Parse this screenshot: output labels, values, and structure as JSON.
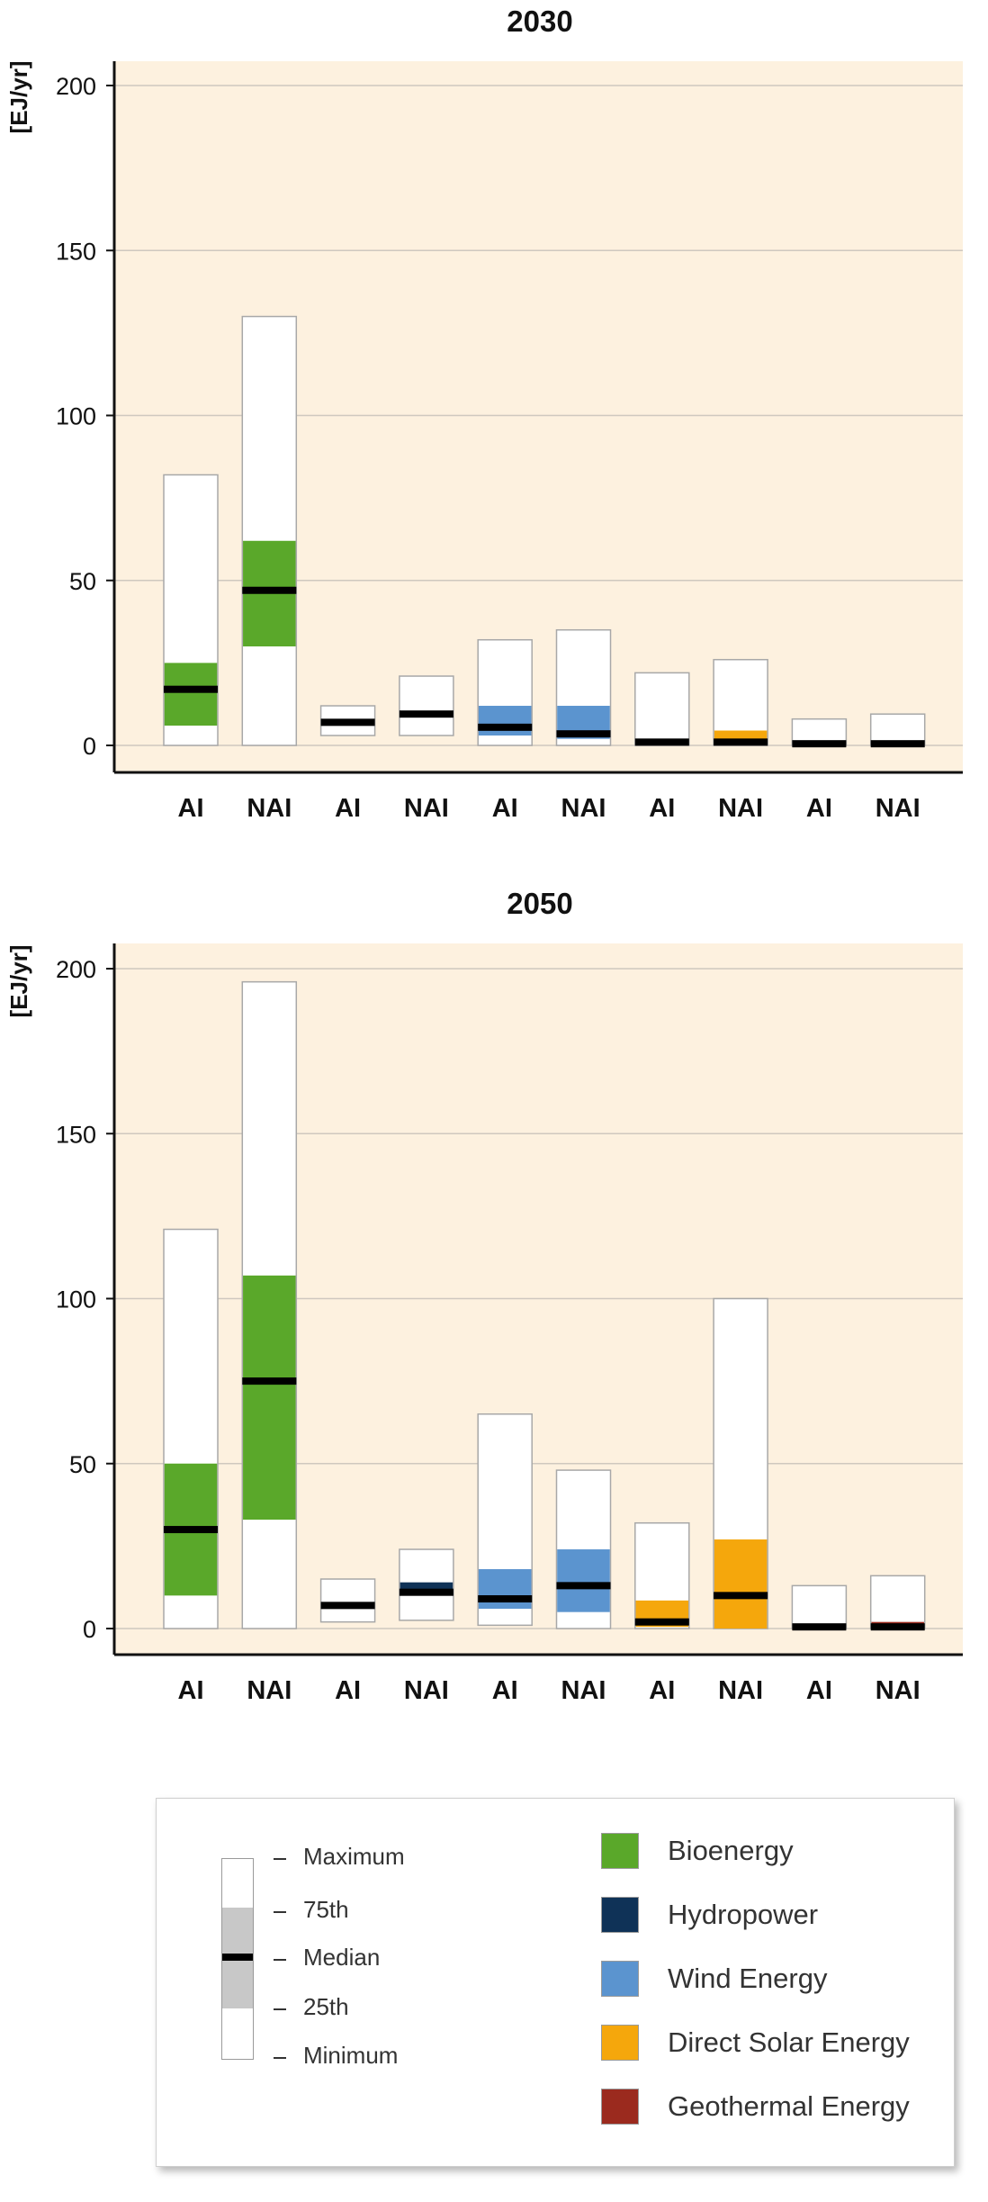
{
  "chart_data": [
    {
      "type": "box",
      "title": "2030",
      "ylabel": "[EJ/yr]",
      "ylim": [
        0,
        200
      ],
      "yticks": [
        0,
        50,
        100,
        150,
        200
      ],
      "categories": [
        "AI",
        "NAI",
        "AI",
        "NAI",
        "AI",
        "NAI",
        "AI",
        "NAI",
        "AI",
        "NAI"
      ],
      "boxes": [
        {
          "category": "AI",
          "technology": "Bioenergy",
          "min": 0,
          "q1": 6,
          "median": 17,
          "q3": 25,
          "max": 82
        },
        {
          "category": "NAI",
          "technology": "Bioenergy",
          "min": 0,
          "q1": 30,
          "median": 47,
          "q3": 62,
          "max": 130
        },
        {
          "category": "AI",
          "technology": "Hydropower",
          "min": 3,
          "q1": 6,
          "median": 7,
          "q3": 7.5,
          "max": 12
        },
        {
          "category": "NAI",
          "technology": "Hydropower",
          "min": 3,
          "q1": 8.5,
          "median": 9.5,
          "q3": 10,
          "max": 21
        },
        {
          "category": "AI",
          "technology": "Wind Energy",
          "min": 0,
          "q1": 3,
          "median": 5.5,
          "q3": 12,
          "max": 32
        },
        {
          "category": "NAI",
          "technology": "Wind Energy",
          "min": 0,
          "q1": 2,
          "median": 3.5,
          "q3": 12,
          "max": 35
        },
        {
          "category": "AI",
          "technology": "Direct Solar Energy",
          "min": 0,
          "q1": 0.5,
          "median": 1,
          "q3": 2,
          "max": 22
        },
        {
          "category": "NAI",
          "technology": "Direct Solar Energy",
          "min": 0,
          "q1": 0.5,
          "median": 1,
          "q3": 4.5,
          "max": 26
        },
        {
          "category": "AI",
          "technology": "Geothermal Energy",
          "min": 0,
          "q1": 0,
          "median": 0.5,
          "q3": 1,
          "max": 8
        },
        {
          "category": "NAI",
          "technology": "Geothermal Energy",
          "min": 0,
          "q1": 0,
          "median": 0.5,
          "q3": 1,
          "max": 9.5
        }
      ]
    },
    {
      "type": "box",
      "title": "2050",
      "ylabel": "[EJ/yr]",
      "ylim": [
        0,
        200
      ],
      "yticks": [
        0,
        50,
        100,
        150,
        200
      ],
      "categories": [
        "AI",
        "NAI",
        "AI",
        "NAI",
        "AI",
        "NAI",
        "AI",
        "NAI",
        "AI",
        "NAI"
      ],
      "boxes": [
        {
          "category": "AI",
          "technology": "Bioenergy",
          "min": 0,
          "q1": 10,
          "median": 30,
          "q3": 50,
          "max": 121
        },
        {
          "category": "NAI",
          "technology": "Bioenergy",
          "min": 0,
          "q1": 33,
          "median": 75,
          "q3": 107,
          "max": 196
        },
        {
          "category": "AI",
          "technology": "Hydropower",
          "min": 2,
          "q1": 6,
          "median": 7,
          "q3": 7.5,
          "max": 15
        },
        {
          "category": "NAI",
          "technology": "Hydropower",
          "min": 2.5,
          "q1": 10,
          "median": 11,
          "q3": 14,
          "max": 24
        },
        {
          "category": "AI",
          "technology": "Wind Energy",
          "min": 1,
          "q1": 6,
          "median": 9,
          "q3": 18,
          "max": 65
        },
        {
          "category": "NAI",
          "technology": "Wind Energy",
          "min": 0,
          "q1": 5,
          "median": 13,
          "q3": 24,
          "max": 48
        },
        {
          "category": "AI",
          "technology": "Direct Solar Energy",
          "min": 0,
          "q1": 0.5,
          "median": 2,
          "q3": 8.5,
          "max": 32
        },
        {
          "category": "NAI",
          "technology": "Direct Solar Energy",
          "min": 0,
          "q1": 0,
          "median": 10,
          "q3": 27,
          "max": 100
        },
        {
          "category": "AI",
          "technology": "Geothermal Energy",
          "min": 0,
          "q1": 0,
          "median": 0.5,
          "q3": 1,
          "max": 13
        },
        {
          "category": "NAI",
          "technology": "Geothermal Energy",
          "min": 0,
          "q1": 0,
          "median": 0.5,
          "q3": 2,
          "max": 16
        }
      ]
    }
  ],
  "legend": {
    "key": {
      "maximum": "Maximum",
      "q3": "75th",
      "median": "Median",
      "q1": "25th",
      "minimum": "Minimum"
    },
    "technologies": [
      {
        "name": "Bioenergy",
        "color": "#5aa82a"
      },
      {
        "name": "Hydropower",
        "color": "#0f3257"
      },
      {
        "name": "Wind Energy",
        "color": "#5b94cf"
      },
      {
        "name": "Direct Solar Energy",
        "color": "#f5a70c"
      },
      {
        "name": "Geothermal Energy",
        "color": "#9b2a1e"
      }
    ]
  },
  "colors": {
    "plot_background": "#fdf1df",
    "gridline": "#cfc8bf",
    "axis": "#111111",
    "median": "#000000",
    "whisker_box": "#ffffff",
    "key_quartile": "#c8c8c8"
  }
}
